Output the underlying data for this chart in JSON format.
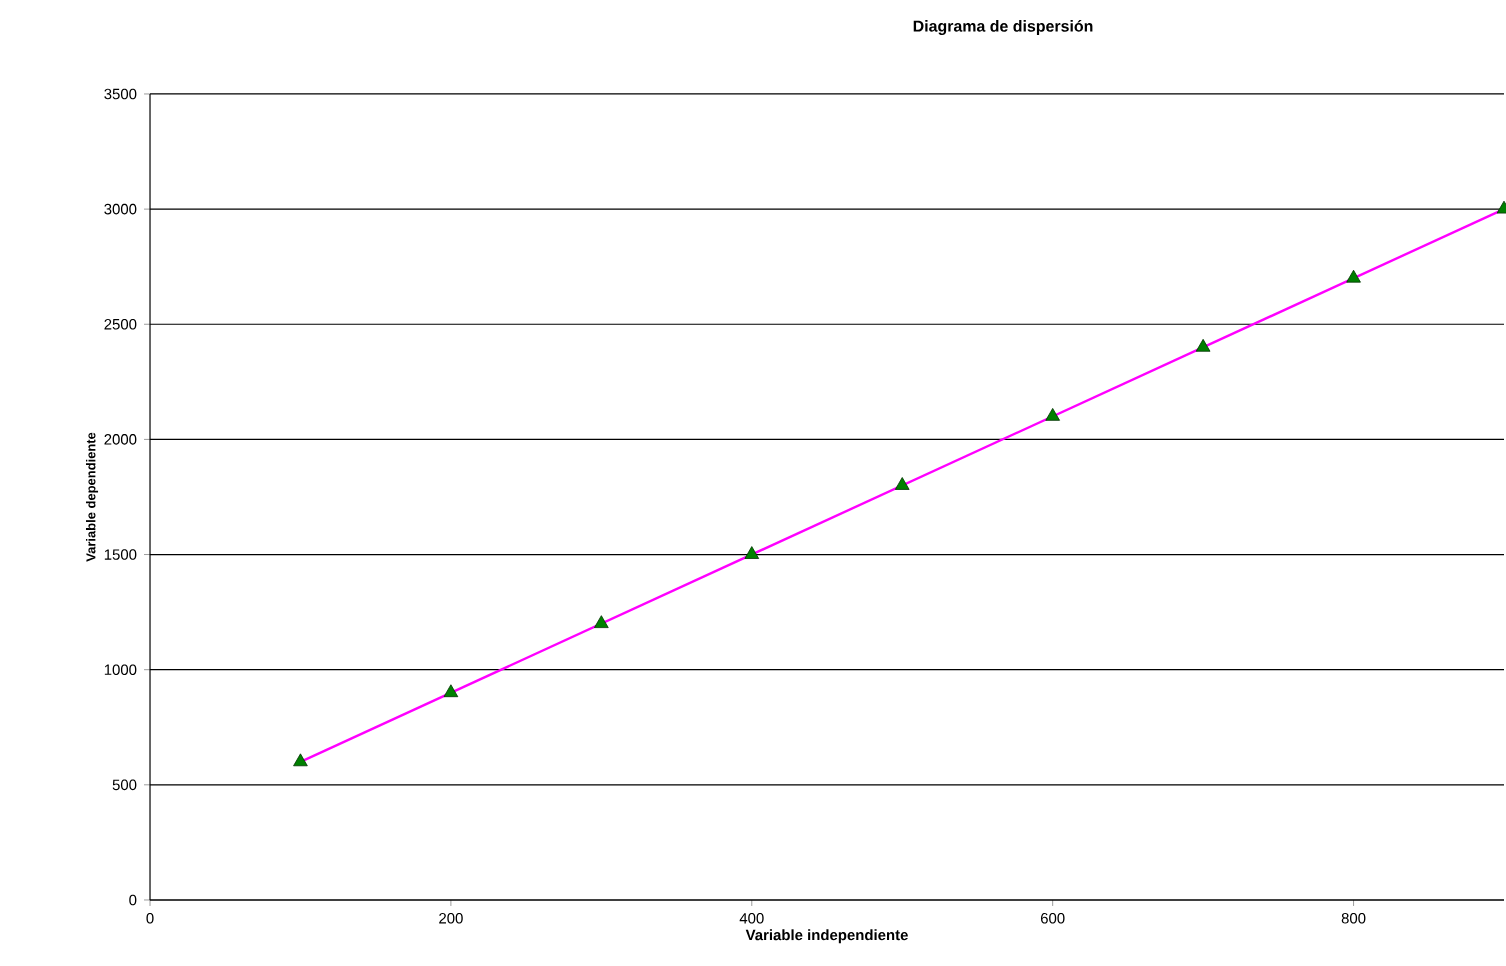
{
  "chart_data": {
    "type": "scatter",
    "title": "Diagrama de dispersión",
    "xlabel": "Variable independiente",
    "ylabel": "Variable dependiente",
    "xlim": [
      0,
      900
    ],
    "xticks": [
      0,
      200,
      400,
      600,
      800
    ],
    "ylim": [
      0,
      3500
    ],
    "yticks": [
      0,
      500,
      1000,
      1500,
      2000,
      2500,
      3000,
      3500
    ],
    "grid": "y",
    "series": [
      {
        "type": "line",
        "color": "#ff00ff",
        "x": [
          100,
          900
        ],
        "values": [
          600,
          3000
        ]
      },
      {
        "color": "#008000",
        "marker": "triangle",
        "x": [
          100,
          200,
          300,
          400,
          500,
          600,
          700,
          800,
          900
        ],
        "values": [
          600,
          900,
          1200,
          1500,
          1800,
          2100,
          2400,
          2700,
          3000
        ]
      }
    ]
  }
}
